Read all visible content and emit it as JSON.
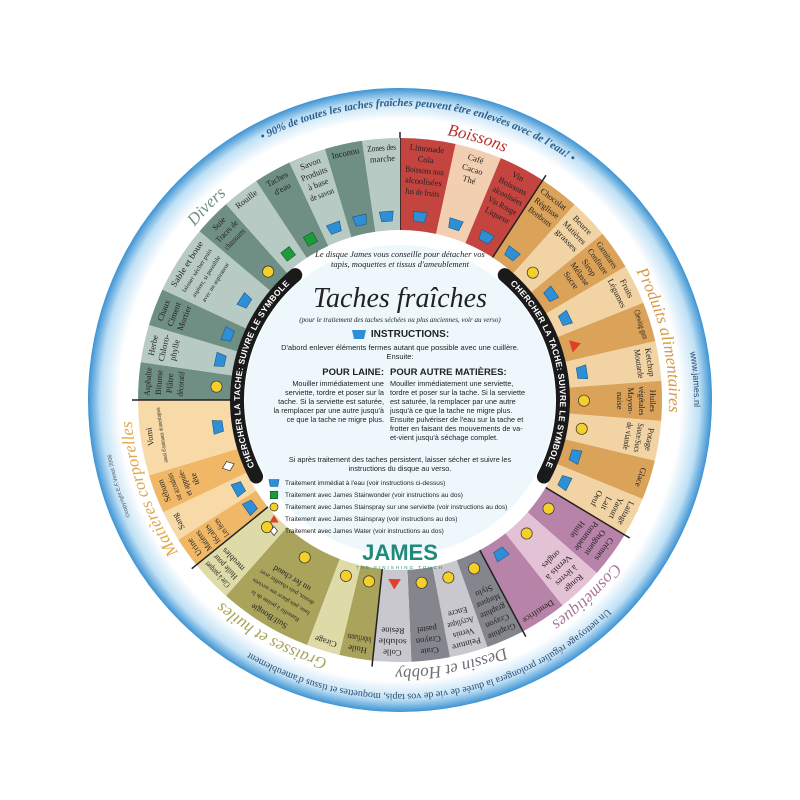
{
  "outer_text_top": "• 90% de toutes les taches fraîches peuvent être enlevées avec de l'eau! •",
  "outer_text_bottom": "Un nettoyage régulier prolongera la durée de vie de vos tapis, moquettes et tissus d'ameublement",
  "website": "www.james.nl",
  "copyright": "©copyright E.F.Venot 2006",
  "band_text": "CHERCHER LA TACHE: SUIVRE LE SYMBOLE",
  "colors": {
    "water": "#2f8fd6",
    "square": "#1e9a3c",
    "circle": "#f5d02a",
    "triangle": "#e0402a",
    "diamond": "#ffffff",
    "ring": "#5aa9dc"
  },
  "categories": [
    {
      "name": "Boissons",
      "title_color": "#b8322e",
      "dark": "#c4443f",
      "light": "#f3cfb2",
      "items": [
        {
          "lines": [
            "Limonade",
            "Cola",
            "Boissons non",
            "alcoolisées",
            "Jus de fruits"
          ],
          "symbol": "water"
        },
        {
          "lines": [
            "Café",
            "Cacao",
            "Thé"
          ],
          "symbol": "water"
        },
        {
          "lines": [
            "Vin",
            "Boissons",
            "alcoolisées",
            "Vin Rouge",
            "Liqueur"
          ],
          "symbol": "water"
        }
      ]
    },
    {
      "name": "Produits alimentaires",
      "title_color": "#d49a44",
      "dark": "#dba35a",
      "light": "#f2d3a4",
      "items": [
        {
          "lines": [
            "Chocolat",
            "Réglisse",
            "Bonbons"
          ],
          "symbol": "water"
        },
        {
          "lines": [
            "Beurre",
            "Matières",
            "grasses"
          ],
          "symbol": "circle"
        },
        {
          "lines": [
            "Garnitures",
            "Confiture",
            "Sirop",
            "Mélasse",
            "Sucre"
          ],
          "symbol": "water"
        },
        {
          "lines": [
            "Fruits",
            "Légumes"
          ],
          "symbol": "water"
        },
        {
          "lines": [
            "Chewing-gum"
          ],
          "symbol": "triangle"
        },
        {
          "lines": [
            "Ketchup",
            "Moutarde"
          ],
          "symbol": "water"
        },
        {
          "lines": [
            "Huiles",
            "végétales",
            "Mayon-",
            "naise"
          ],
          "symbol": "circle"
        },
        {
          "lines": [
            "Potage",
            "Sauce/Sucs",
            "de viande"
          ],
          "symbol": "circle"
        },
        {
          "lines": [
            "Glace"
          ],
          "symbol": "water"
        },
        {
          "lines": [
            "Laitage",
            "Yaourt",
            "Lait",
            "Oeuf"
          ],
          "symbol": "water"
        }
      ]
    },
    {
      "name": "Cosmétiques",
      "title_color": "#a9769a",
      "dark": "#b883a8",
      "light": "#e3c2d6",
      "items": [
        {
          "lines": [
            "Crèmes",
            "Onguent",
            "Pommade",
            "Huile"
          ],
          "symbol": "circle"
        },
        {
          "lines": [
            "Rouge",
            "à lèvres",
            "Vernis à",
            "ongles"
          ],
          "symbol": "circle"
        },
        {
          "lines": [
            "Dentifrice"
          ],
          "symbol": "water"
        }
      ]
    },
    {
      "name": "Dessin et Hobby",
      "title_color": "#6e6e76",
      "dark": "#85858e",
      "light": "#c8c8ce",
      "items": [
        {
          "lines": [
            "Graphite",
            "Crayon",
            "graphite",
            "Marqueur",
            "Stylo"
          ],
          "symbol": "circle"
        },
        {
          "lines": [
            "Peinture",
            "Vernis",
            "Acrylique",
            "Encre"
          ],
          "symbol": "circle"
        },
        {
          "lines": [
            "Craie",
            "Crayon",
            "pastel"
          ],
          "symbol": "circle"
        },
        {
          "lines": [
            "Colle",
            "soluble",
            "Résine"
          ],
          "symbol": "triangle"
        }
      ]
    },
    {
      "name": "Graisses et huiles",
      "title_color": "#a8a25a",
      "dark": "#a9a35c",
      "light": "#dedba8",
      "items": [
        {
          "lines": [
            "Huile",
            "lubrifiants"
          ],
          "symbol": "circle"
        },
        {
          "lines": [
            "Cirage"
          ],
          "symbol": "circle"
        },
        {
          "lines": [
            "Suif/Bougie",
            "Ramollir à pointe de la",
            "lame, puis placer une serviette",
            "dessus, puis chauffer avec",
            "un fer chaud"
          ],
          "symbol": "circle"
        },
        {
          "lines": [
            "Cire à parquet",
            "Huile pour",
            "meubles"
          ],
          "symbol": "circle"
        }
      ]
    },
    {
      "name": "Matières corporelles",
      "title_color": "#e0a64a",
      "dark": "#f0b766",
      "light": "#f8daa8",
      "items": [
        {
          "lines": [
            "Urine",
            "Matières",
            "fécales",
            "Les fèces"
          ],
          "symbol": "water"
        },
        {
          "lines": [
            "Sang"
          ],
          "symbol": "water"
        },
        {
          "lines": [
            "Sébum",
            "sur accoudoirs",
            "et appuie-",
            "tête"
          ],
          "symbol": "diamond"
        },
        {
          "lines": [
            "Vomi",
            "aussi d'animaux domestiques"
          ],
          "symbol": "water"
        }
      ]
    },
    {
      "name": "Divers",
      "title_color": "#6f8f84",
      "dark": "#6f8f84",
      "light": "#b7cac3",
      "items": [
        {
          "lines": [
            "Asphalte",
            "Bitume",
            "Plâtre",
            "décoratif"
          ],
          "symbol": "circle"
        },
        {
          "lines": [
            "Herbe",
            "Chloro-",
            "phylle"
          ],
          "symbol": "water"
        },
        {
          "lines": [
            "Chaux",
            "Ciment",
            "Mortier"
          ],
          "symbol": "water"
        },
        {
          "lines": [
            "Sable et boue",
            "laisser sécher puis",
            "aspirer, si possible",
            "avec un aspirateur"
          ],
          "symbol": "water"
        },
        {
          "lines": [
            "Suie",
            "Traces de",
            "chaussures"
          ],
          "symbol": "circle"
        },
        {
          "lines": [
            "Rouille"
          ],
          "symbol": "square"
        },
        {
          "lines": [
            "Taches",
            "d'eau"
          ],
          "symbol": "square"
        },
        {
          "lines": [
            "Savon",
            "Produits",
            "à base",
            "de savon"
          ],
          "symbol": "water"
        },
        {
          "lines": [
            "Inconnu"
          ],
          "symbol": "water"
        },
        {
          "lines": [
            "Zones des",
            "marche"
          ],
          "symbol": "water"
        }
      ]
    }
  ],
  "center": {
    "intro": "Le disque James vous conseille pour détacher vos tapis, moquettes et tissus d'ameublement",
    "title": "Taches fraîches",
    "subtitle": "(pour le traitement des taches séchées ou plus anciennes, voir au verso)",
    "instructions_heading": "INSTRUCTIONS:",
    "instructions_text": "D'abord enlever éléments fermes autant que possible avec une cuillère. Ensuite:",
    "wool_heading": "POUR LAINE:",
    "wool_text": "Mouiller immédiatement une serviette, tordre et poser sur la tache. Si la serviette est saturée, la remplacer par une autre jusqu'à ce que la tache ne migre plus.",
    "other_heading": "POUR AUTRE MATIÈRES:",
    "other_text": "Mouiller immédiatement une serviette, tordre et poser sur la tache. Si la serviette est saturée, la remplacer par une autre jusqu'à ce que la tache ne migre plus. Ensuite pulvériser de l'eau sur la tache et frotter en faisant des mouvements de va-et-vient jusqu'à séchage complet.",
    "after_text": "Si après traitement des taches persistent, laisser sécher et suivre les instructions du disque au verso.",
    "legend": [
      {
        "symbol": "water",
        "label": "Traitement immédiat à l'eau (voir instructions ci-dessus)"
      },
      {
        "symbol": "square",
        "label": "Traitement avec James Stainwonder (voir instructions au dos)"
      },
      {
        "symbol": "circle",
        "label": "Traitement avec James Stainspray sur une serviette (voir instructions au dos)"
      },
      {
        "symbol": "triangle",
        "label": "Traitement avec James Stainspray (voir instructions au dos)"
      },
      {
        "symbol": "diamond",
        "label": "Traitement avec James Water (voir instructions au dos)"
      }
    ],
    "logo_name": "JAMES",
    "logo_tagline": "THE FINISHING TOUCH"
  }
}
